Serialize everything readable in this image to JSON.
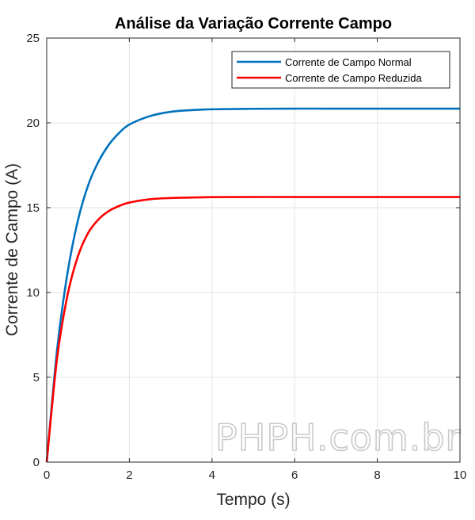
{
  "chart_data": {
    "type": "line",
    "title": "Análise da Variação Corrente Campo",
    "xlabel": "Tempo (s)",
    "ylabel": "Corrente de Campo (A)",
    "xlim": [
      0,
      10
    ],
    "ylim": [
      0,
      25
    ],
    "xticks": [
      0,
      2,
      4,
      6,
      8,
      10
    ],
    "yticks": [
      0,
      5,
      10,
      15,
      20,
      25
    ],
    "grid": true,
    "legend_position": "top-right",
    "x": [
      0,
      0.25,
      0.5,
      0.75,
      1,
      1.25,
      1.5,
      1.75,
      2,
      2.5,
      3,
      3.5,
      4,
      5,
      6,
      7,
      8,
      9,
      10
    ],
    "series": [
      {
        "name": "Corrente de Campo Normal",
        "color": "#0072BD",
        "values": [
          0,
          6.6,
          11.1,
          14.2,
          16.3,
          17.7,
          18.7,
          19.4,
          19.9,
          20.4,
          20.65,
          20.75,
          20.8,
          20.83,
          20.84,
          20.84,
          20.84,
          20.84,
          20.84
        ]
      },
      {
        "name": "Corrente de Campo Reduzida",
        "color": "#FF0000",
        "values": [
          0,
          6.1,
          9.8,
          12.1,
          13.5,
          14.3,
          14.8,
          15.1,
          15.3,
          15.5,
          15.57,
          15.6,
          15.62,
          15.63,
          15.63,
          15.63,
          15.63,
          15.63,
          15.63
        ]
      }
    ]
  },
  "watermark": "PHPH.com.br"
}
